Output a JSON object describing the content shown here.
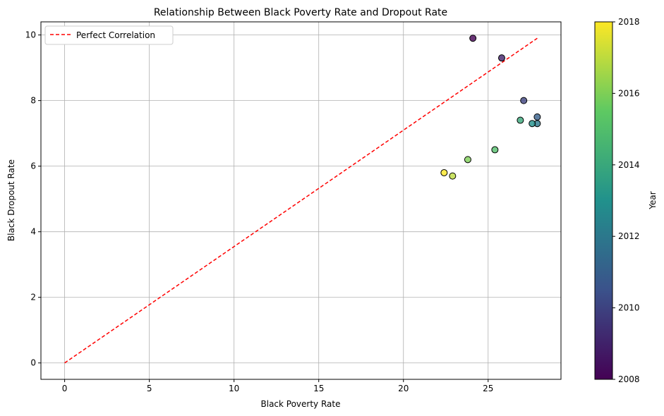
{
  "chart_data": {
    "type": "scatter",
    "title": "Relationship Between Black Poverty Rate and Dropout Rate",
    "xlabel": "Black Poverty Rate",
    "ylabel": "Black Dropout Rate",
    "xlim": [
      -1.4,
      29.3
    ],
    "ylim": [
      -0.5,
      10.4
    ],
    "xticks": [
      0,
      5,
      10,
      15,
      20,
      25
    ],
    "yticks": [
      0,
      2,
      4,
      6,
      8,
      10
    ],
    "grid": true,
    "legend": {
      "position": "top-left",
      "entries": [
        "Perfect Correlation"
      ]
    },
    "reference_line": {
      "label": "Perfect Correlation",
      "color": "#ff0000",
      "style": "dashed",
      "x": [
        0,
        27.9
      ],
      "y": [
        0,
        9.9
      ]
    },
    "colorbar": {
      "label": "Year",
      "min": 2008,
      "max": 2018,
      "ticks": [
        2008,
        2010,
        2012,
        2014,
        2016,
        2018
      ],
      "colormap": "viridis"
    },
    "points": [
      {
        "x": 24.1,
        "y": 9.9,
        "year": 2008
      },
      {
        "x": 25.8,
        "y": 9.3,
        "year": 2009
      },
      {
        "x": 27.1,
        "y": 8.0,
        "year": 2010
      },
      {
        "x": 27.9,
        "y": 7.5,
        "year": 2011
      },
      {
        "x": 27.9,
        "y": 7.3,
        "year": 2012
      },
      {
        "x": 27.6,
        "y": 7.3,
        "year": 2013
      },
      {
        "x": 26.9,
        "y": 7.4,
        "year": 2014
      },
      {
        "x": 25.4,
        "y": 6.5,
        "year": 2015
      },
      {
        "x": 23.8,
        "y": 6.2,
        "year": 2016
      },
      {
        "x": 22.9,
        "y": 5.7,
        "year": 2017
      },
      {
        "x": 22.4,
        "y": 5.8,
        "year": 2018
      }
    ]
  }
}
